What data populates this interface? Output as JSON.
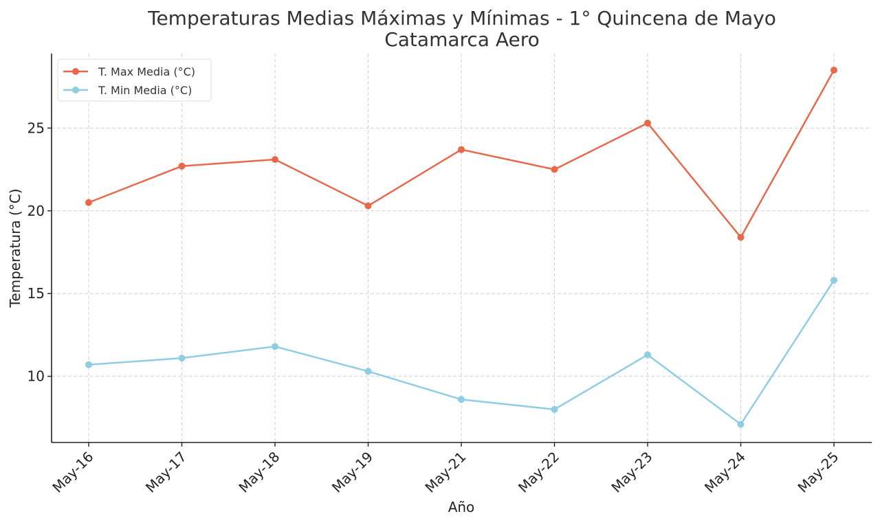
{
  "chart_data": {
    "type": "line",
    "title": "Temperaturas Medias Máximas y Mínimas - 1° Quincena de Mayo",
    "subtitle": "Catamarca Aero",
    "xlabel": "Año",
    "ylabel": "Temperatura (°C)",
    "categories": [
      "May-16",
      "May-17",
      "May-18",
      "May-19",
      "May-21",
      "May-22",
      "May-23",
      "May-24",
      "May-25"
    ],
    "ylim": [
      6,
      29.5
    ],
    "yticks": [
      10,
      15,
      20,
      25
    ],
    "grid": true,
    "legend_position": "top-left",
    "series": [
      {
        "name": "T. Max Media (°C)",
        "color": "#e8684a",
        "values": [
          20.5,
          22.7,
          23.1,
          20.3,
          23.7,
          22.5,
          25.3,
          18.4,
          28.5
        ]
      },
      {
        "name": "T. Min Media (°C)",
        "color": "#8ecde3",
        "values": [
          10.7,
          11.1,
          11.8,
          10.3,
          8.6,
          8.0,
          11.3,
          7.1,
          15.8
        ]
      }
    ]
  }
}
